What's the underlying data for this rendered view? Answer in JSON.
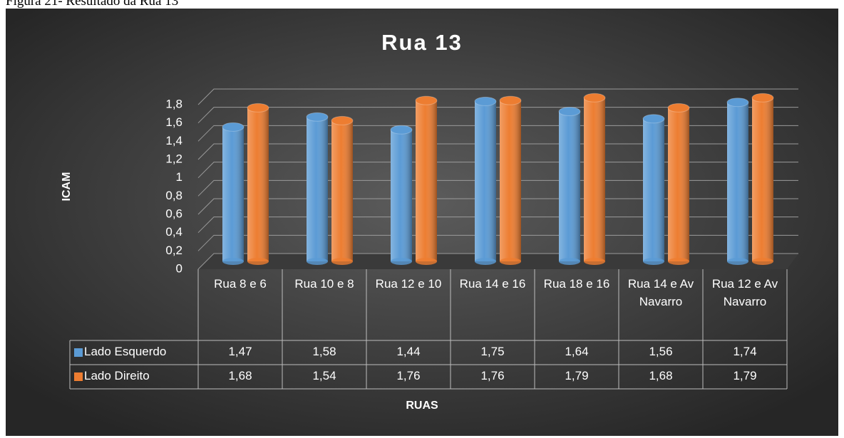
{
  "caption": "Figura 21- Resultado da Rua 13",
  "chart_data": {
    "type": "bar",
    "title": "Rua 13",
    "y_label": "ICAM",
    "x_label": "RUAS",
    "categories": [
      "Rua 8 e 6",
      "Rua 10 e 8",
      "Rua 12 e 10",
      "Rua 14 e 16",
      "Rua 18 e 16",
      "Rua 14 e Av Navarro",
      "Rua 12 e Av Navarro"
    ],
    "series": [
      {
        "name": "Lado Esquerdo",
        "color": "#5b9bd5",
        "values": [
          1.47,
          1.58,
          1.44,
          1.75,
          1.64,
          1.56,
          1.74
        ],
        "value_labels": [
          "1,47",
          "1,58",
          "1,44",
          "1,75",
          "1,64",
          "1,56",
          "1,74"
        ]
      },
      {
        "name": "Lado Direito",
        "color": "#ed7d31",
        "values": [
          1.68,
          1.54,
          1.76,
          1.76,
          1.79,
          1.68,
          1.79
        ],
        "value_labels": [
          "1,68",
          "1,54",
          "1,76",
          "1,76",
          "1,79",
          "1,68",
          "1,79"
        ]
      }
    ],
    "ylim": [
      0,
      1.8
    ],
    "yticks": [
      0,
      {
        "value": 0.2,
        "label": "0,2"
      },
      {
        "value": 0.4,
        "label": "0,4"
      },
      {
        "value": 0.6,
        "label": "0,6"
      },
      {
        "value": 0.8,
        "label": "0,8"
      },
      1,
      {
        "value": 1.2,
        "label": "1,2"
      },
      {
        "value": 1.4,
        "label": "1,4"
      },
      {
        "value": 1.6,
        "label": "1,6"
      },
      {
        "value": 1.8,
        "label": "1,8"
      }
    ],
    "grid": true
  }
}
